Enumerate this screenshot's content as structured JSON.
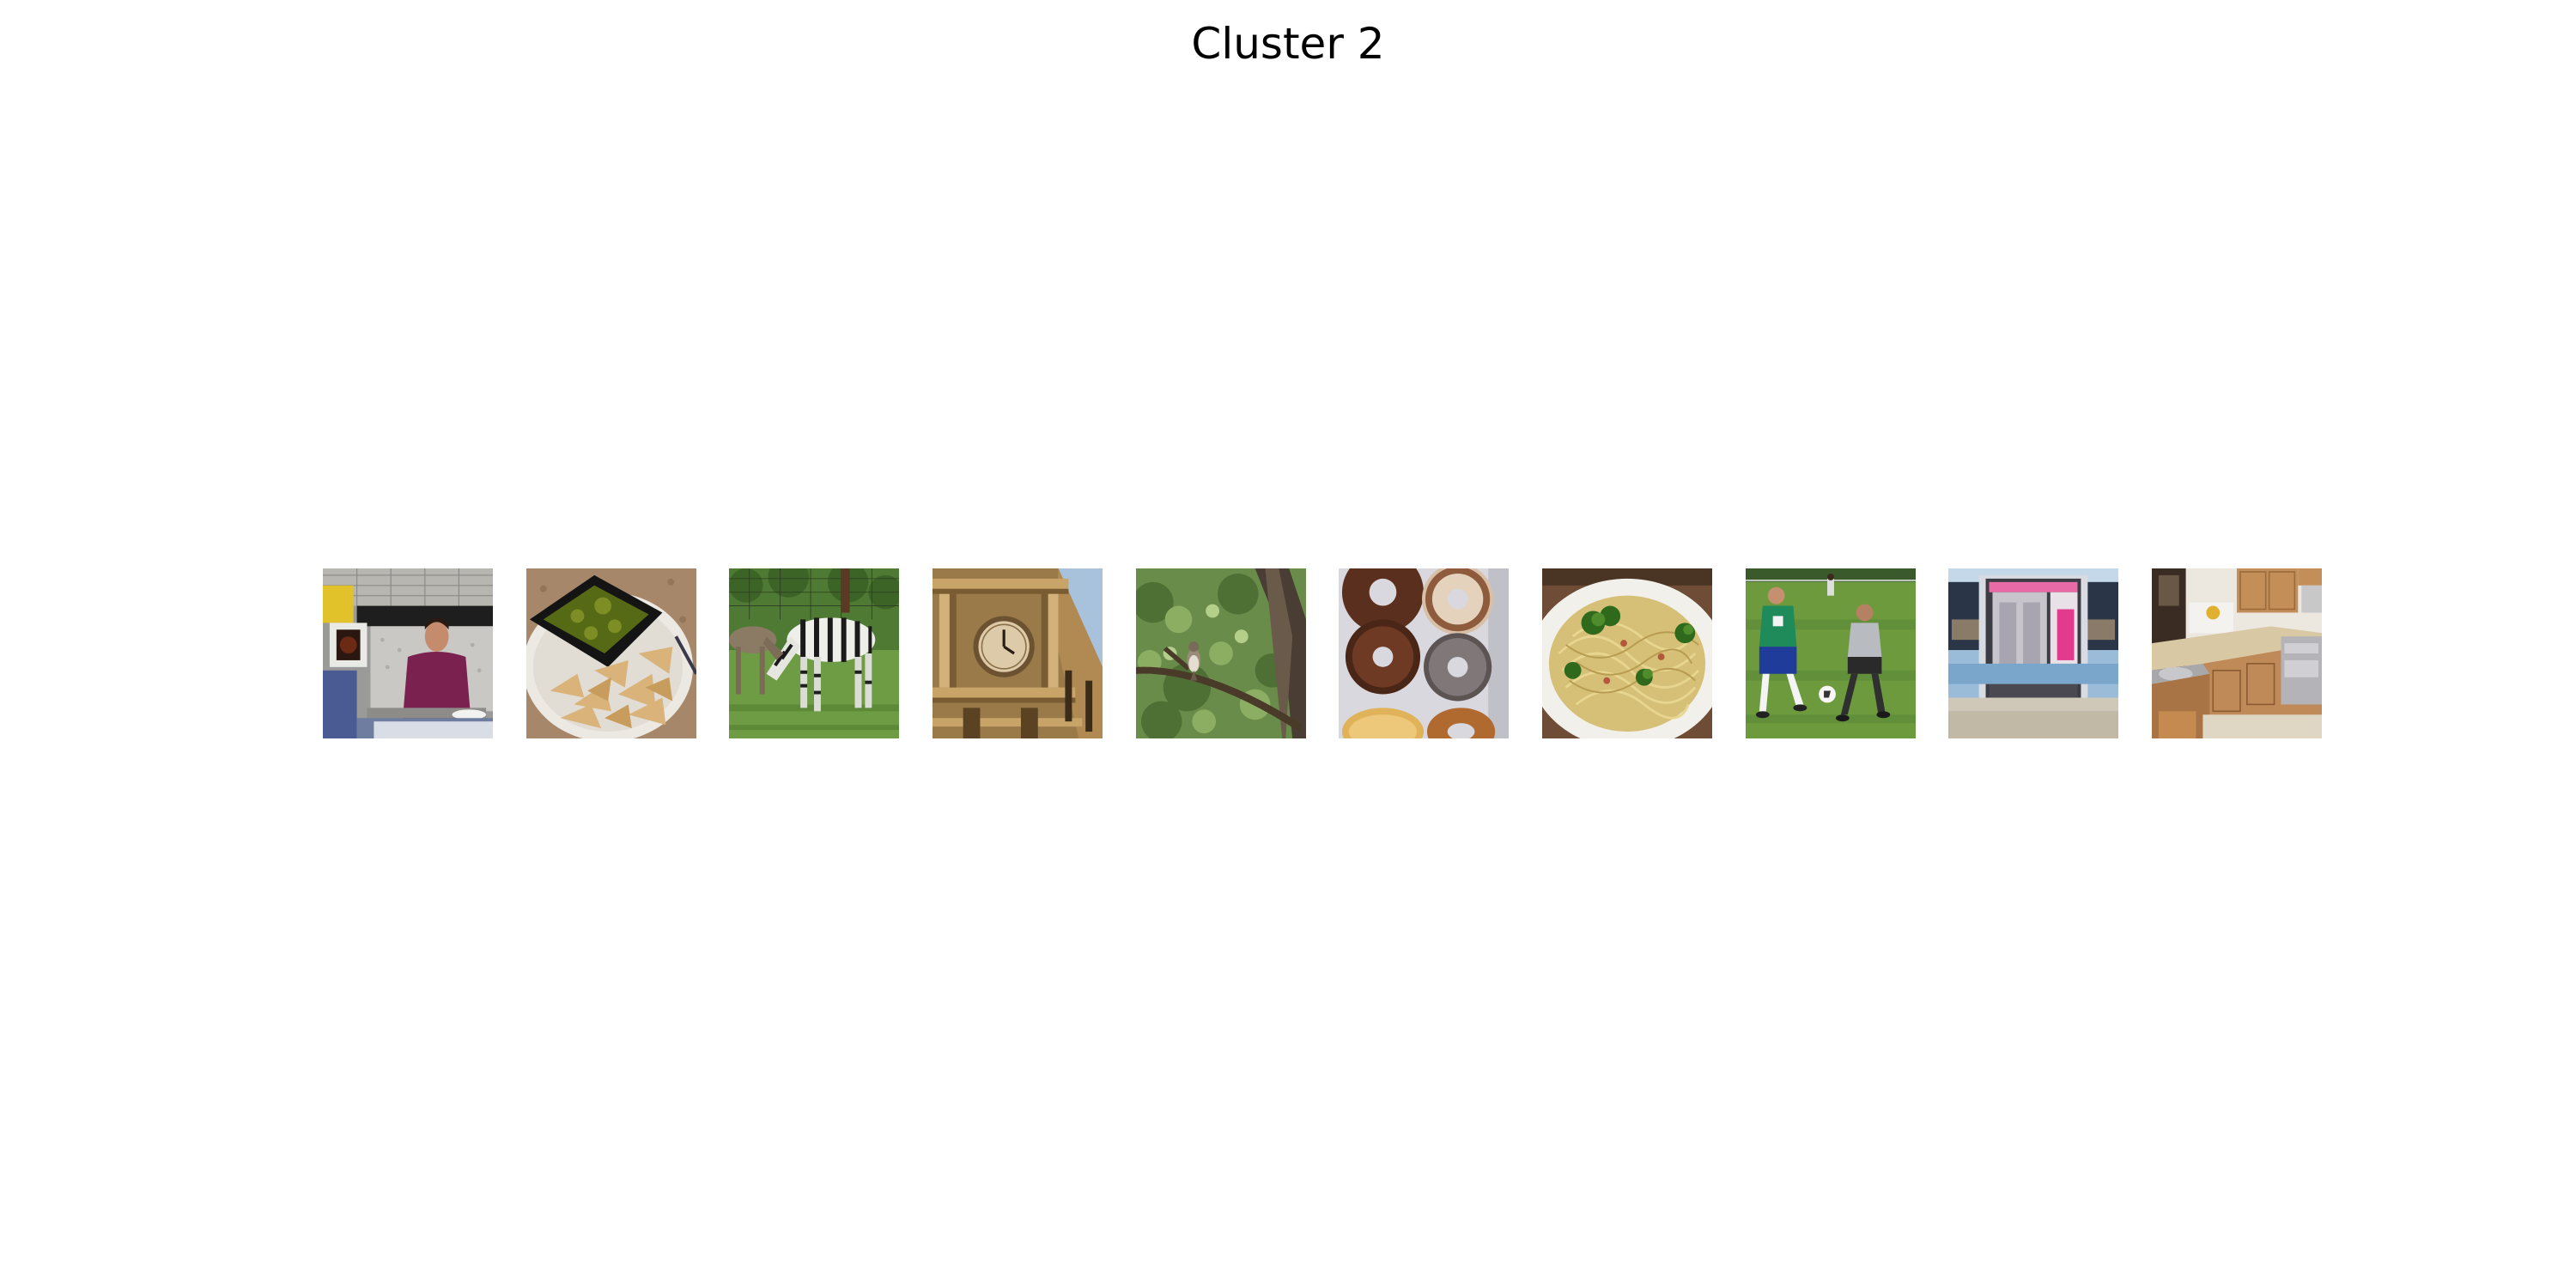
{
  "figure": {
    "title": "Cluster 2"
  },
  "thumbnails": [
    {
      "subject": "man-in-kitchen"
    },
    {
      "subject": "plate-with-guacamole-and-chips"
    },
    {
      "subject": "zebras-grazing"
    },
    {
      "subject": "clock-tower"
    },
    {
      "subject": "bird-on-branch"
    },
    {
      "subject": "box-of-donuts"
    },
    {
      "subject": "pasta-with-broccoli"
    },
    {
      "subject": "kids-playing-soccer"
    },
    {
      "subject": "train-doors-open"
    },
    {
      "subject": "kitchen-interior"
    }
  ]
}
